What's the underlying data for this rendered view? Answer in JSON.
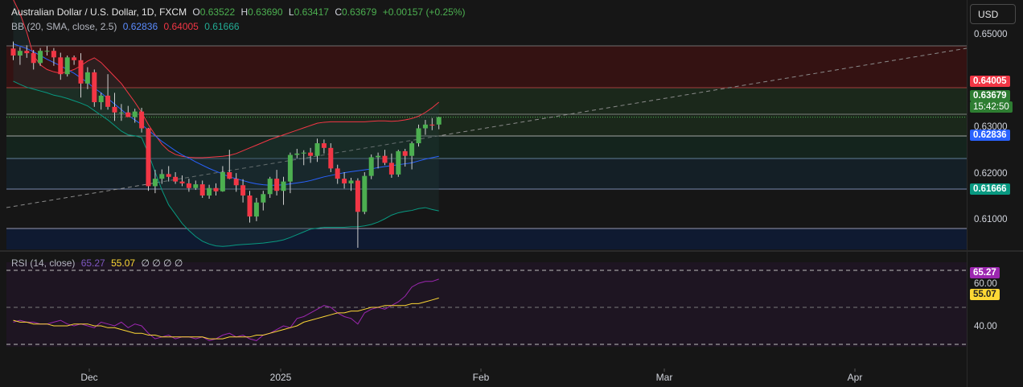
{
  "header": {
    "symbol": "Australian Dollar / U.S. Dollar, 1D, FXCM",
    "open_label": "O",
    "open": "0.63522",
    "high_label": "H",
    "high": "0.63690",
    "low_label": "L",
    "low": "0.63417",
    "close_label": "C",
    "close": "0.63679",
    "change": "+0.00157 (+0.25%)",
    "bb_label": "BB (20, SMA, close, 2.5)",
    "bb_basis": "0.62836",
    "bb_upper": "0.64005",
    "bb_lower": "0.61666",
    "rsi_label": "RSI (14, close)",
    "rsi_value": "65.27",
    "rsi_ma": "55.07",
    "rsi_empty": "∅ ∅ ∅ ∅"
  },
  "currency_button": "USD",
  "price_badges": {
    "upper": "0.64005",
    "last": "0.63679",
    "countdown": "15:42:50",
    "basis": "0.62836",
    "lower": "0.61666"
  },
  "rsi_badges": {
    "rsi": "65.27",
    "ma": "55.07"
  },
  "colors": {
    "background": "#161616",
    "up": "#4caf50",
    "down": "#f23645",
    "bb_upper": "#f23645",
    "bb_basis": "#2962ff",
    "bb_lower": "#089981",
    "rsi_line": "#9c27b0",
    "rsi_ma": "#fdd835"
  },
  "chart_data": [
    {
      "type": "candlestick",
      "title": "Australian Dollar / U.S. Dollar, 1D, FXCM",
      "ylim": [
        0.6055,
        0.6545
      ],
      "y_ticks": [
        "0.65000",
        "0.64000",
        "0.63000",
        "0.62000",
        "0.61000"
      ],
      "x_ticks": [
        "Dec",
        "2025",
        "Feb",
        "Mar",
        "Apr"
      ],
      "candles": [
        {
          "o": 0.6515,
          "h": 0.653,
          "l": 0.649,
          "c": 0.65
        },
        {
          "o": 0.65,
          "h": 0.6518,
          "l": 0.648,
          "c": 0.651
        },
        {
          "o": 0.651,
          "h": 0.6522,
          "l": 0.6495,
          "c": 0.6505
        },
        {
          "o": 0.6505,
          "h": 0.6512,
          "l": 0.647,
          "c": 0.6484
        },
        {
          "o": 0.6484,
          "h": 0.6516,
          "l": 0.6478,
          "c": 0.651
        },
        {
          "o": 0.651,
          "h": 0.652,
          "l": 0.65,
          "c": 0.651
        },
        {
          "o": 0.651,
          "h": 0.6516,
          "l": 0.6478,
          "c": 0.6496
        },
        {
          "o": 0.6496,
          "h": 0.6506,
          "l": 0.6448,
          "c": 0.646
        },
        {
          "o": 0.646,
          "h": 0.65,
          "l": 0.6455,
          "c": 0.6496
        },
        {
          "o": 0.6496,
          "h": 0.65,
          "l": 0.648,
          "c": 0.649
        },
        {
          "o": 0.649,
          "h": 0.6505,
          "l": 0.641,
          "c": 0.644
        },
        {
          "o": 0.644,
          "h": 0.6475,
          "l": 0.6428,
          "c": 0.6464
        },
        {
          "o": 0.6464,
          "h": 0.647,
          "l": 0.639,
          "c": 0.64
        },
        {
          "o": 0.64,
          "h": 0.642,
          "l": 0.6384,
          "c": 0.6414
        },
        {
          "o": 0.6414,
          "h": 0.646,
          "l": 0.6384,
          "c": 0.639
        },
        {
          "o": 0.639,
          "h": 0.642,
          "l": 0.636,
          "c": 0.6378
        },
        {
          "o": 0.6378,
          "h": 0.6396,
          "l": 0.636,
          "c": 0.6378
        },
        {
          "o": 0.6378,
          "h": 0.6392,
          "l": 0.637,
          "c": 0.6368
        },
        {
          "o": 0.6368,
          "h": 0.6386,
          "l": 0.6356,
          "c": 0.638
        },
        {
          "o": 0.638,
          "h": 0.6388,
          "l": 0.6335,
          "c": 0.6344
        },
        {
          "o": 0.6344,
          "h": 0.6345,
          "l": 0.621,
          "c": 0.622
        },
        {
          "o": 0.622,
          "h": 0.6255,
          "l": 0.6205,
          "c": 0.6236
        },
        {
          "o": 0.6236,
          "h": 0.6256,
          "l": 0.6225,
          "c": 0.6246
        },
        {
          "o": 0.6246,
          "h": 0.6263,
          "l": 0.623,
          "c": 0.624
        },
        {
          "o": 0.624,
          "h": 0.625,
          "l": 0.6225,
          "c": 0.623
        },
        {
          "o": 0.623,
          "h": 0.6243,
          "l": 0.622,
          "c": 0.6226
        },
        {
          "o": 0.6226,
          "h": 0.6236,
          "l": 0.6208,
          "c": 0.6216
        },
        {
          "o": 0.6216,
          "h": 0.6232,
          "l": 0.6212,
          "c": 0.6224
        },
        {
          "o": 0.6224,
          "h": 0.6232,
          "l": 0.6195,
          "c": 0.62
        },
        {
          "o": 0.62,
          "h": 0.6223,
          "l": 0.6193,
          "c": 0.6216
        },
        {
          "o": 0.6216,
          "h": 0.6226,
          "l": 0.62,
          "c": 0.6209
        },
        {
          "o": 0.6209,
          "h": 0.6263,
          "l": 0.6208,
          "c": 0.625
        },
        {
          "o": 0.625,
          "h": 0.6298,
          "l": 0.6235,
          "c": 0.6236
        },
        {
          "o": 0.6236,
          "h": 0.6248,
          "l": 0.6208,
          "c": 0.6222
        },
        {
          "o": 0.6222,
          "h": 0.6235,
          "l": 0.6185,
          "c": 0.62
        },
        {
          "o": 0.62,
          "h": 0.621,
          "l": 0.6142,
          "c": 0.6155
        },
        {
          "o": 0.6155,
          "h": 0.6195,
          "l": 0.6145,
          "c": 0.6185
        },
        {
          "o": 0.6185,
          "h": 0.621,
          "l": 0.6168,
          "c": 0.6203
        },
        {
          "o": 0.6203,
          "h": 0.624,
          "l": 0.6195,
          "c": 0.6236
        },
        {
          "o": 0.6236,
          "h": 0.6255,
          "l": 0.62,
          "c": 0.621
        },
        {
          "o": 0.621,
          "h": 0.624,
          "l": 0.618,
          "c": 0.623
        },
        {
          "o": 0.623,
          "h": 0.6292,
          "l": 0.6205,
          "c": 0.6287
        },
        {
          "o": 0.6287,
          "h": 0.63,
          "l": 0.628,
          "c": 0.629
        },
        {
          "o": 0.629,
          "h": 0.6297,
          "l": 0.6265,
          "c": 0.6292
        },
        {
          "o": 0.6292,
          "h": 0.6302,
          "l": 0.627,
          "c": 0.6285
        },
        {
          "o": 0.6285,
          "h": 0.6322,
          "l": 0.6272,
          "c": 0.6312
        },
        {
          "o": 0.6312,
          "h": 0.632,
          "l": 0.629,
          "c": 0.6302
        },
        {
          "o": 0.6302,
          "h": 0.6312,
          "l": 0.625,
          "c": 0.6258
        },
        {
          "o": 0.6258,
          "h": 0.6266,
          "l": 0.6225,
          "c": 0.6236
        },
        {
          "o": 0.6236,
          "h": 0.625,
          "l": 0.6215,
          "c": 0.6226
        },
        {
          "o": 0.6226,
          "h": 0.6238,
          "l": 0.621,
          "c": 0.6232
        },
        {
          "o": 0.6232,
          "h": 0.6237,
          "l": 0.6088,
          "c": 0.6165
        },
        {
          "o": 0.6165,
          "h": 0.625,
          "l": 0.616,
          "c": 0.6242
        },
        {
          "o": 0.6242,
          "h": 0.6288,
          "l": 0.6235,
          "c": 0.6282
        },
        {
          "o": 0.6282,
          "h": 0.6292,
          "l": 0.6258,
          "c": 0.6285
        },
        {
          "o": 0.6285,
          "h": 0.6298,
          "l": 0.6265,
          "c": 0.627
        },
        {
          "o": 0.627,
          "h": 0.629,
          "l": 0.6238,
          "c": 0.6245
        },
        {
          "o": 0.6245,
          "h": 0.6298,
          "l": 0.624,
          "c": 0.6295
        },
        {
          "o": 0.6295,
          "h": 0.63,
          "l": 0.6262,
          "c": 0.6285
        },
        {
          "o": 0.6285,
          "h": 0.6316,
          "l": 0.6256,
          "c": 0.6312
        },
        {
          "o": 0.6312,
          "h": 0.6352,
          "l": 0.6305,
          "c": 0.6344
        },
        {
          "o": 0.6344,
          "h": 0.6362,
          "l": 0.633,
          "c": 0.6352
        },
        {
          "o": 0.6352,
          "h": 0.6366,
          "l": 0.634,
          "c": 0.635
        },
        {
          "o": 0.6352,
          "h": 0.6369,
          "l": 0.6342,
          "c": 0.6368
        }
      ],
      "bb_upper": [
        0.662,
        0.659,
        0.655,
        0.65,
        0.648,
        0.647,
        0.6465,
        0.6462,
        0.6465,
        0.647,
        0.6478,
        0.6488,
        0.6495,
        0.6485,
        0.647,
        0.6455,
        0.644,
        0.642,
        0.64,
        0.6378,
        0.6352,
        0.633,
        0.631,
        0.6296,
        0.6288,
        0.6284,
        0.6282,
        0.6281,
        0.6281,
        0.6282,
        0.6283,
        0.6284,
        0.6286,
        0.629,
        0.6296,
        0.6302,
        0.6308,
        0.6314,
        0.632,
        0.6325,
        0.633,
        0.6335,
        0.634,
        0.6345,
        0.635,
        0.6355,
        0.6357,
        0.6358,
        0.6358,
        0.6358,
        0.6358,
        0.6358,
        0.6358,
        0.6359,
        0.636,
        0.636,
        0.6359,
        0.636,
        0.6362,
        0.6365,
        0.637,
        0.6378,
        0.6388,
        0.64
      ],
      "bb_basis": [
        0.6525,
        0.652,
        0.6515,
        0.6508,
        0.65,
        0.6492,
        0.6485,
        0.6478,
        0.647,
        0.6462,
        0.6452,
        0.6442,
        0.643,
        0.642,
        0.6408,
        0.6396,
        0.6384,
        0.6372,
        0.6362,
        0.6352,
        0.634,
        0.6328,
        0.6316,
        0.6306,
        0.6296,
        0.6287,
        0.628,
        0.6272,
        0.6265,
        0.6258,
        0.6252,
        0.6246,
        0.624,
        0.6236,
        0.6232,
        0.6228,
        0.6225,
        0.6223,
        0.6222,
        0.6222,
        0.6223,
        0.6225,
        0.6227,
        0.6229,
        0.6232,
        0.6236,
        0.624,
        0.6243,
        0.6246,
        0.6249,
        0.6251,
        0.6253,
        0.6255,
        0.6257,
        0.626,
        0.6262,
        0.6264,
        0.6266,
        0.6268,
        0.627,
        0.6274,
        0.6278,
        0.6281,
        0.6284
      ],
      "bb_lower": [
        0.6445,
        0.6438,
        0.6432,
        0.6428,
        0.6424,
        0.642,
        0.6415,
        0.6412,
        0.6408,
        0.6403,
        0.6398,
        0.6392,
        0.6382,
        0.6372,
        0.6362,
        0.635,
        0.6338,
        0.633,
        0.6328,
        0.6324,
        0.629,
        0.625,
        0.6212,
        0.618,
        0.616,
        0.614,
        0.6125,
        0.6112,
        0.6102,
        0.6096,
        0.6092,
        0.6091,
        0.6092,
        0.6094,
        0.6095,
        0.6096,
        0.6097,
        0.6098,
        0.61,
        0.6102,
        0.6105,
        0.611,
        0.6116,
        0.6122,
        0.6128,
        0.613,
        0.6132,
        0.6132,
        0.6132,
        0.6132,
        0.6133,
        0.6133,
        0.6135,
        0.6138,
        0.6143,
        0.615,
        0.6158,
        0.6163,
        0.6166,
        0.6168,
        0.6172,
        0.6174,
        0.617,
        0.6167
      ]
    },
    {
      "type": "line",
      "title": "RSI (14, close)",
      "ylim": [
        24,
        76
      ],
      "y_ticks": [
        "60.00",
        "40.00"
      ],
      "series": [
        {
          "name": "RSI",
          "values": [
            42,
            43,
            42,
            42,
            41,
            41,
            42,
            43,
            41,
            40,
            41,
            40,
            39,
            42,
            41,
            40,
            42,
            39,
            41,
            40,
            36,
            33,
            34,
            35,
            33,
            34,
            34,
            33,
            34,
            32,
            33,
            35,
            36,
            34,
            35,
            33,
            32,
            35,
            36,
            38,
            40,
            39,
            44,
            45,
            47,
            49,
            51,
            50,
            47,
            45,
            44,
            41,
            47,
            49,
            50,
            49,
            51,
            53,
            56,
            61,
            63,
            64,
            64,
            65.27
          ]
        },
        {
          "name": "RSI-based MA",
          "values": [
            43,
            42,
            42,
            41,
            41,
            41,
            40,
            40,
            40,
            41,
            41,
            41,
            40,
            40,
            39,
            39,
            38,
            37,
            36,
            36,
            35,
            35,
            34,
            34,
            34,
            34,
            34,
            34,
            34,
            33,
            33,
            33,
            34,
            34,
            34,
            34,
            35,
            35,
            36,
            37,
            38,
            39,
            40,
            42,
            43,
            44,
            45,
            46,
            47,
            47,
            48,
            48,
            49,
            50,
            50,
            51,
            51,
            51,
            51,
            52,
            52,
            53,
            54,
            55.07
          ]
        }
      ]
    }
  ]
}
